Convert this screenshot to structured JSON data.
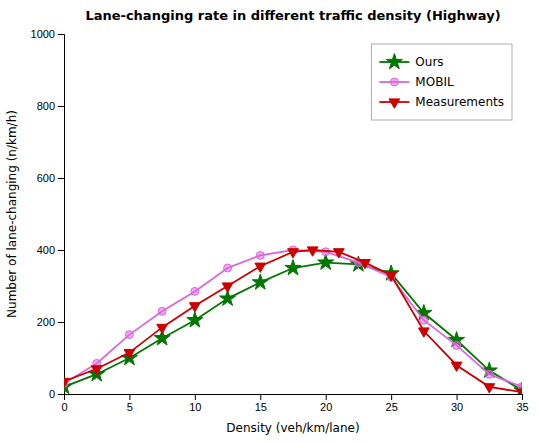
{
  "chart_data": {
    "type": "line",
    "title": "Lane-changing rate in different traffic density (Highway)",
    "x_label": "Density (veh/km/lane)",
    "y_label": "Number of lane-changing (n/km/h)",
    "xlim": [
      0,
      35
    ],
    "ylim": [
      0,
      1000
    ],
    "xticks": [
      0,
      5,
      10,
      15,
      20,
      25,
      30,
      35
    ],
    "yticks": [
      0,
      200,
      400,
      600,
      800,
      1000
    ],
    "grid": false,
    "legend": "upper right",
    "series": [
      {
        "name": "Ours",
        "color": "#007700",
        "marker": "star",
        "line_style": "solid",
        "x": [
          0,
          2.5,
          5,
          7.5,
          10,
          12.5,
          15,
          17.5,
          20,
          22.5,
          25,
          27.5,
          30,
          32.5,
          35
        ],
        "values": [
          20,
          55,
          100,
          155,
          205,
          265,
          310,
          350,
          365,
          360,
          335,
          225,
          150,
          65,
          10
        ]
      },
      {
        "name": "MOBIL",
        "color": "#dd66dd",
        "marker": "circle",
        "line_style": "solid",
        "x": [
          0,
          2.5,
          5,
          7.5,
          10,
          12.5,
          15,
          17.5,
          20,
          22.5,
          25,
          27.5,
          30,
          32.5,
          35
        ],
        "values": [
          30,
          85,
          165,
          230,
          285,
          350,
          385,
          400,
          395,
          365,
          325,
          205,
          135,
          55,
          20
        ]
      },
      {
        "name": "Measurements",
        "color": "#cc0000",
        "marker": "triangle-down",
        "line_style": "solid",
        "x": [
          0,
          2.5,
          5,
          7.5,
          10,
          12.5,
          15,
          17.5,
          19,
          21,
          23,
          25,
          27.5,
          30,
          32.5,
          35
        ],
        "values": [
          35,
          70,
          115,
          185,
          245,
          300,
          355,
          395,
          400,
          395,
          365,
          330,
          175,
          80,
          20,
          5
        ]
      }
    ]
  }
}
